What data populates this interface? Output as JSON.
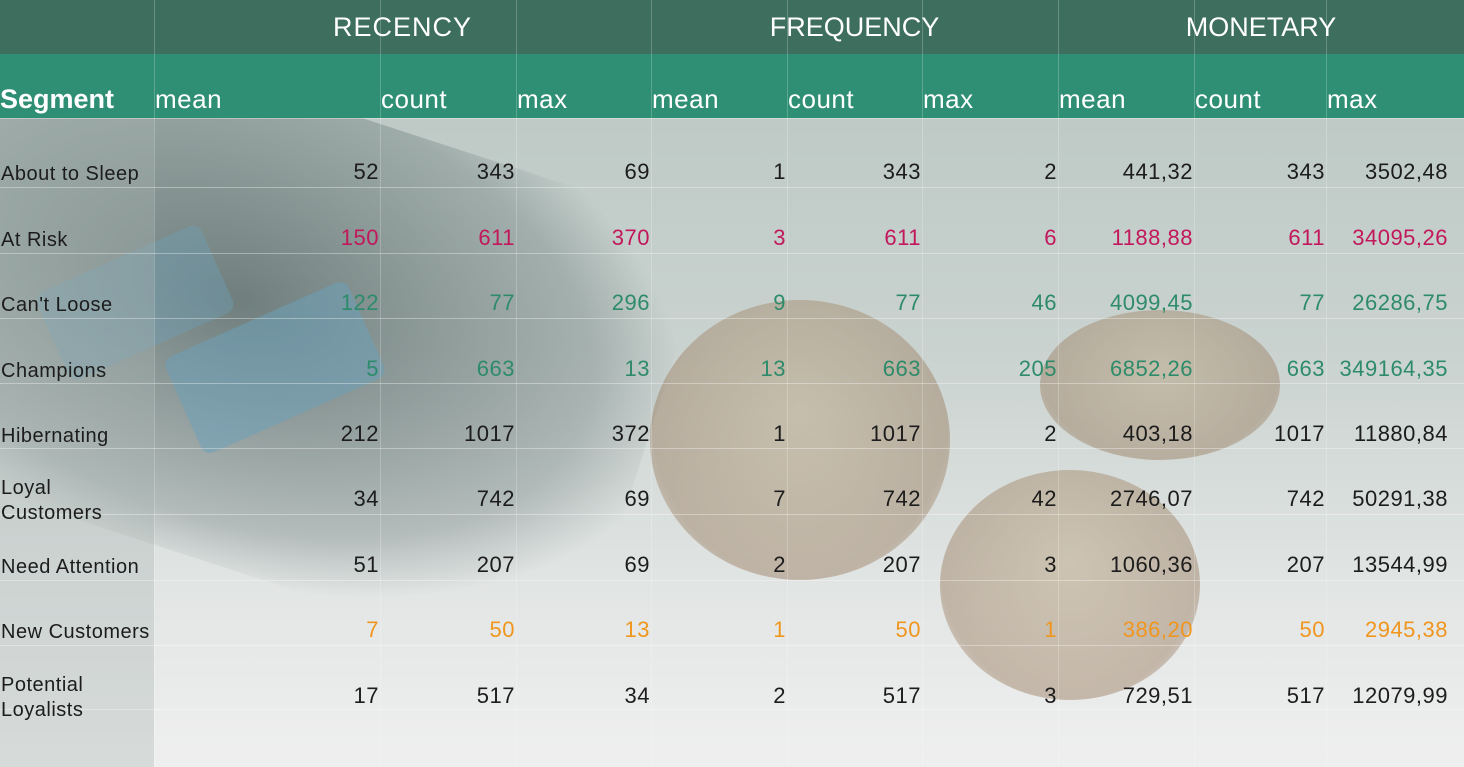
{
  "groups": [
    "RECENCY",
    "FREQUENCY",
    "MONETARY"
  ],
  "segment_header": "Segment",
  "subheaders": [
    "mean",
    "count",
    "max",
    "mean",
    "count",
    "max",
    "mean",
    "count",
    "max"
  ],
  "colors": {
    "header_dark": "#3e6e5e",
    "header_teal": "#2f8f74",
    "default_text": "#1c1c1c",
    "risk": "#c2185b",
    "good": "#2e8b6a",
    "new": "#f0961e"
  },
  "chart_data": {
    "type": "table",
    "column_groups": [
      "RECENCY",
      "FREQUENCY",
      "MONETARY"
    ],
    "columns": [
      "mean",
      "count",
      "max",
      "mean",
      "count",
      "max",
      "mean",
      "count",
      "max"
    ],
    "rows": [
      {
        "segment": [
          "About to Sleep"
        ],
        "style": "default",
        "values": [
          "52",
          "343",
          "69",
          "1",
          "343",
          "2",
          "441,32",
          "343",
          "3502,48"
        ]
      },
      {
        "segment": [
          "At Risk"
        ],
        "style": "risk",
        "values": [
          "150",
          "611",
          "370",
          "3",
          "611",
          "6",
          "1188,88",
          "611",
          "34095,26"
        ]
      },
      {
        "segment": [
          "Can't Loose"
        ],
        "style": "good",
        "values": [
          "122",
          "77",
          "296",
          "9",
          "77",
          "46",
          "4099,45",
          "77",
          "26286,75"
        ]
      },
      {
        "segment": [
          "Champions"
        ],
        "style": "good",
        "values": [
          "5",
          "663",
          "13",
          "13",
          "663",
          "205",
          "6852,26",
          "663",
          "349164,35"
        ]
      },
      {
        "segment": [
          "Hibernating"
        ],
        "style": "default",
        "values": [
          "212",
          "1017",
          "372",
          "1",
          "1017",
          "2",
          "403,18",
          "1017",
          "11880,84"
        ]
      },
      {
        "segment": [
          "Loyal",
          "Customers"
        ],
        "style": "default",
        "values": [
          "34",
          "742",
          "69",
          "7",
          "742",
          "42",
          "2746,07",
          "742",
          "50291,38"
        ]
      },
      {
        "segment": [
          "Need Attention"
        ],
        "style": "default",
        "values": [
          "51",
          "207",
          "69",
          "2",
          "207",
          "3",
          "1060,36",
          "207",
          "13544,99"
        ]
      },
      {
        "segment": [
          "New Customers"
        ],
        "style": "new",
        "values": [
          "7",
          "50",
          "13",
          "1",
          "50",
          "1",
          "386,20",
          "50",
          "2945,38"
        ]
      },
      {
        "segment": [
          "Potential",
          "Loyalists"
        ],
        "style": "default",
        "values": [
          "17",
          "517",
          "34",
          "2",
          "517",
          "3",
          "729,51",
          "517",
          "12079,99"
        ]
      }
    ]
  }
}
